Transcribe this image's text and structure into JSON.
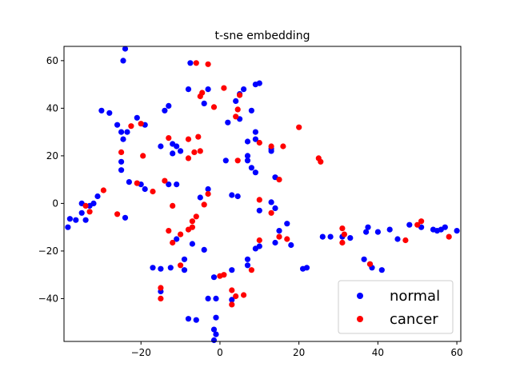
{
  "chart_data": {
    "type": "scatter",
    "title": "t-sne embedding",
    "xlabel": "",
    "ylabel": "",
    "xlim": [
      -39.5,
      61.0
    ],
    "ylim": [
      -58.0,
      66.0
    ],
    "xticks": [
      -20,
      0,
      20,
      40,
      60
    ],
    "yticks": [
      -40,
      -20,
      0,
      20,
      40,
      60
    ],
    "grid": false,
    "legend_position": "lower-right",
    "series": [
      {
        "name": "normal",
        "color": "#0000ff",
        "points": [
          [
            -24,
            65
          ],
          [
            -24.5,
            60
          ],
          [
            -7.5,
            59
          ],
          [
            -30,
            39
          ],
          [
            -28,
            38
          ],
          [
            -21,
            36
          ],
          [
            -19,
            33
          ],
          [
            -14,
            39
          ],
          [
            -13,
            41
          ],
          [
            -8,
            48
          ],
          [
            -4,
            42
          ],
          [
            -3,
            48
          ],
          [
            4,
            43
          ],
          [
            5,
            46
          ],
          [
            6,
            48
          ],
          [
            9,
            50
          ],
          [
            10,
            50.5
          ],
          [
            5,
            35.5
          ],
          [
            2,
            34
          ],
          [
            8,
            39
          ],
          [
            -24.5,
            27
          ],
          [
            -23.5,
            30
          ],
          [
            -25,
            30
          ],
          [
            -26,
            33
          ],
          [
            -15,
            24
          ],
          [
            -12,
            25
          ],
          [
            -11,
            24
          ],
          [
            -12,
            21
          ],
          [
            -10,
            22
          ],
          [
            -25,
            17.5
          ],
          [
            -25,
            14
          ],
          [
            -23,
            9
          ],
          [
            -20,
            8
          ],
          [
            -19,
            6
          ],
          [
            -13,
            8
          ],
          [
            -11,
            8
          ],
          [
            -5,
            2.5
          ],
          [
            -3,
            6
          ],
          [
            7,
            20
          ],
          [
            7,
            18
          ],
          [
            7,
            26
          ],
          [
            9,
            27
          ],
          [
            9,
            30
          ],
          [
            8,
            15
          ],
          [
            9,
            13
          ],
          [
            13,
            22
          ],
          [
            13,
            23
          ],
          [
            14,
            11
          ],
          [
            1.5,
            18
          ],
          [
            3,
            3.5
          ],
          [
            4.5,
            3
          ],
          [
            10,
            -3
          ],
          [
            13,
            0.5
          ],
          [
            14,
            -2
          ],
          [
            17,
            -8.5
          ],
          [
            -38,
            -6.5
          ],
          [
            -38.5,
            -10
          ],
          [
            -36.5,
            -7
          ],
          [
            -35,
            -4
          ],
          [
            -34,
            -7
          ],
          [
            -32,
            0
          ],
          [
            -31,
            3
          ],
          [
            -33,
            -1
          ],
          [
            -35,
            0
          ],
          [
            -24,
            -6
          ],
          [
            -17,
            -27
          ],
          [
            -15,
            -27.5
          ],
          [
            -15,
            -37
          ],
          [
            -12.5,
            -27
          ],
          [
            -11,
            -15
          ],
          [
            -9,
            -23.5
          ],
          [
            -9,
            -28
          ],
          [
            -7,
            -17
          ],
          [
            -4,
            -19.5
          ],
          [
            -8,
            -48.5
          ],
          [
            -6,
            -49
          ],
          [
            -3,
            -40
          ],
          [
            -1,
            -40
          ],
          [
            -1.5,
            -31
          ],
          [
            3,
            -28
          ],
          [
            3,
            -40.5
          ],
          [
            7,
            -26
          ],
          [
            7,
            -23.5
          ],
          [
            9,
            -19
          ],
          [
            10,
            -18
          ],
          [
            14,
            -16.5
          ],
          [
            15,
            -11.5
          ],
          [
            18,
            -17.5
          ],
          [
            21,
            -27.5
          ],
          [
            22,
            -27
          ],
          [
            -1,
            -48
          ],
          [
            -1.5,
            -53
          ],
          [
            -1,
            -55
          ],
          [
            -1.5,
            -57.5
          ],
          [
            26,
            -14
          ],
          [
            28,
            -14
          ],
          [
            31,
            -14
          ],
          [
            33,
            -14.5
          ],
          [
            37,
            -12
          ],
          [
            37.5,
            -10
          ],
          [
            40,
            -12
          ],
          [
            43,
            -11
          ],
          [
            45,
            -15
          ],
          [
            48,
            -9
          ],
          [
            36.5,
            -23.5
          ],
          [
            38,
            -25.5
          ],
          [
            38.5,
            -27
          ],
          [
            41,
            -28
          ],
          [
            51,
            -10
          ],
          [
            54,
            -11
          ],
          [
            55,
            -11.5
          ],
          [
            56,
            -11
          ],
          [
            57,
            -10
          ],
          [
            60,
            -11.5
          ]
        ]
      },
      {
        "name": "cancer",
        "color": "#ff0000",
        "points": [
          [
            -6,
            59
          ],
          [
            -3,
            58.5
          ],
          [
            -5,
            45
          ],
          [
            -4.5,
            46.5
          ],
          [
            -1.5,
            40.5
          ],
          [
            1,
            48.5
          ],
          [
            4.5,
            39.5
          ],
          [
            5,
            45.5
          ],
          [
            4,
            36.5
          ],
          [
            -22.5,
            32.5
          ],
          [
            -20,
            33.5
          ],
          [
            -13,
            27.5
          ],
          [
            -8,
            27
          ],
          [
            -5.5,
            28
          ],
          [
            -6.5,
            21.5
          ],
          [
            -5,
            22
          ],
          [
            -8,
            19
          ],
          [
            -25,
            21.5
          ],
          [
            -19.5,
            20
          ],
          [
            -21,
            8.5
          ],
          [
            -14,
            9.5
          ],
          [
            -17,
            5
          ],
          [
            -12,
            -1
          ],
          [
            -3,
            4
          ],
          [
            -4,
            -0.5
          ],
          [
            -6,
            -5.5
          ],
          [
            -7,
            -7.5
          ],
          [
            -26,
            -4.5
          ],
          [
            -29.5,
            5.5
          ],
          [
            -33,
            -3.5
          ],
          [
            -34,
            -1
          ],
          [
            -10,
            -13
          ],
          [
            -7,
            -10
          ],
          [
            -8,
            -11
          ],
          [
            -13,
            -11.5
          ],
          [
            -12,
            -16.5
          ],
          [
            -10,
            -26
          ],
          [
            -15,
            -35.5
          ],
          [
            -15,
            -40
          ],
          [
            0,
            -30.5
          ],
          [
            1,
            -30
          ],
          [
            3,
            -36.5
          ],
          [
            3,
            -42.5
          ],
          [
            4,
            -39
          ],
          [
            6,
            -38.5
          ],
          [
            8,
            -28
          ],
          [
            10,
            -15.5
          ],
          [
            15,
            -14
          ],
          [
            17,
            -15
          ],
          [
            10,
            1.5
          ],
          [
            13,
            -4
          ],
          [
            10,
            25.5
          ],
          [
            13,
            24
          ],
          [
            16,
            24
          ],
          [
            15,
            10
          ],
          [
            20,
            32
          ],
          [
            25,
            19
          ],
          [
            25.5,
            17.5
          ],
          [
            4.5,
            18
          ],
          [
            31,
            -10.5
          ],
          [
            31,
            -16.5
          ],
          [
            31.5,
            -13
          ],
          [
            38,
            -25.5
          ],
          [
            47,
            -15.5
          ],
          [
            50,
            -9
          ],
          [
            51,
            -7.5
          ],
          [
            58,
            -14
          ]
        ]
      }
    ]
  }
}
